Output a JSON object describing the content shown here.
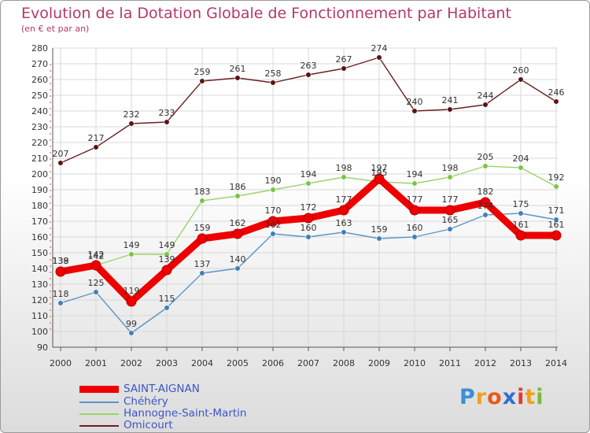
{
  "chart_data": {
    "type": "line",
    "title": "Evolution de la Dotation Globale de Fonctionnement par Habitant",
    "subtitle": "(en € et par an)",
    "xlabel": "",
    "ylabel": "",
    "ylim": [
      90,
      280
    ],
    "y_tick_step": 10,
    "grid": true,
    "legend_position": "bottom-left",
    "x": [
      "2000",
      "2001",
      "2002",
      "2003",
      "2004",
      "2005",
      "2006",
      "2007",
      "2008",
      "2009",
      "2010",
      "2011",
      "2012",
      "2013",
      "2014"
    ],
    "series": [
      {
        "name": "Omicourt",
        "color": "#6b1f1f",
        "marker": "#5a1414",
        "values": [
          207,
          217,
          232,
          233,
          259,
          261,
          258,
          263,
          267,
          274,
          240,
          241,
          244,
          260,
          246
        ]
      },
      {
        "name": "Hannogne-Saint-Martin",
        "color": "#9ad46a",
        "marker": "#7cc443",
        "values": [
          139,
          142,
          149,
          149,
          183,
          186,
          190,
          194,
          198,
          195,
          194,
          198,
          205,
          204,
          192
        ]
      },
      {
        "name": "Chéhéry",
        "color": "#5b95c8",
        "marker": "#3f7fb9",
        "values": [
          118,
          125,
          99,
          115,
          137,
          140,
          162,
          160,
          163,
          159,
          160,
          165,
          174,
          175,
          171
        ]
      },
      {
        "name": "SAINT-AIGNAN",
        "color": "#ee0000",
        "marker": "#ee0000",
        "values": [
          138,
          142,
          119,
          139,
          159,
          162,
          170,
          172,
          177,
          197,
          177,
          177,
          182,
          161,
          161
        ]
      }
    ]
  },
  "legend": [
    {
      "label": "SAINT-AIGNAN",
      "color": "#ee0000",
      "text_color": "#3b55c8"
    },
    {
      "label": "Chéhéry",
      "color": "#5b95c8",
      "text_color": "#3b55c8"
    },
    {
      "label": "Hannogne-Saint-Martin",
      "color": "#9ad46a",
      "text_color": "#3b55c8"
    },
    {
      "label": "Omicourt",
      "color": "#6b1f1f",
      "text_color": "#3b55c8"
    }
  ],
  "logo": {
    "letters": [
      "P",
      "r",
      "o",
      "x",
      "i",
      "t",
      "i"
    ],
    "colors": [
      "#3a8fd8",
      "#f0a020",
      "#e85a1a",
      "#2e6fd0",
      "#e03a2a",
      "#f0a020",
      "#7ab83a"
    ]
  }
}
